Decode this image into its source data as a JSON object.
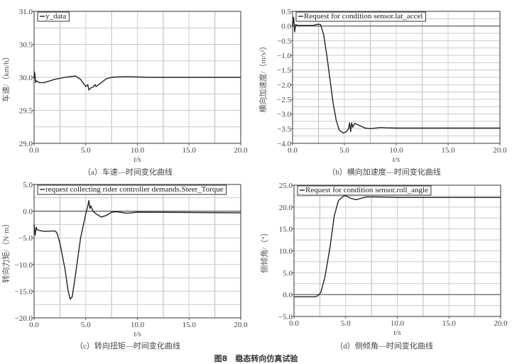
{
  "figure_title": "图8　稳态转向仿真试验",
  "chart_data": [
    {
      "type": "line",
      "caption": "（a）车速—时间变化曲线",
      "xlabel": "t/s",
      "ylabel": "车速/（km/h）",
      "legend": "y_data",
      "legend_position": "top-left",
      "xlim": [
        0,
        20
      ],
      "ylim": [
        29.0,
        31.0
      ],
      "xticks": [
        "0.0",
        "5.0",
        "10.0",
        "15.0",
        "20.0"
      ],
      "yticks": [
        "29.0",
        "29.5",
        "30.0",
        "30.5",
        "31.0"
      ],
      "zero_line": false,
      "x": [
        0,
        0.05,
        0.1,
        0.15,
        0.2,
        0.3,
        0.5,
        1,
        2,
        3,
        4,
        4.5,
        5,
        5.2,
        5.3,
        5.5,
        5.7,
        5.9,
        6,
        6.5,
        7,
        7.5,
        8,
        9,
        10,
        11,
        20
      ],
      "y": [
        29.98,
        30.08,
        30.0,
        29.92,
        29.95,
        29.94,
        29.92,
        29.92,
        29.97,
        30.0,
        30.02,
        29.97,
        29.86,
        29.89,
        29.81,
        29.84,
        29.85,
        29.89,
        29.86,
        29.92,
        29.98,
        30.0,
        30.005,
        30.01,
        30.005,
        30.0,
        30.0
      ]
    },
    {
      "type": "line",
      "caption": "（b）横向加速度—时间变化曲线",
      "xlabel": "t/s",
      "ylabel": "横向加速度/（m/s²）",
      "legend": "Request for condition sensor.lat_accel",
      "legend_position": "top-left",
      "xlim": [
        0,
        20
      ],
      "ylim": [
        -4.0,
        0.5
      ],
      "xticks": [
        "0.0",
        "5.0",
        "10.0",
        "15.0",
        "20.0"
      ],
      "yticks": [
        "-4.0",
        "-3.5",
        "-3.0",
        "-2.5",
        "-2.0",
        "-1.5",
        "-1.0",
        "-0.5",
        "0.0",
        "0.5"
      ],
      "zero_line": true,
      "x": [
        0,
        0.1,
        0.2,
        0.3,
        0.5,
        1,
        2,
        2.4,
        2.7,
        3,
        3.3,
        3.6,
        3.9,
        4.2,
        4.5,
        4.9,
        5.2,
        5.4,
        5.5,
        5.6,
        5.7,
        5.8,
        6,
        6.5,
        7,
        7.5,
        8.5,
        9,
        10,
        20
      ],
      "y": [
        0,
        0.3,
        -0.2,
        0.05,
        0.02,
        0.02,
        0.02,
        0.06,
        0.05,
        -0.3,
        -1.0,
        -1.8,
        -2.6,
        -3.2,
        -3.55,
        -3.65,
        -3.6,
        -3.5,
        -3.3,
        -3.6,
        -3.3,
        -3.45,
        -3.32,
        -3.4,
        -3.48,
        -3.5,
        -3.46,
        -3.47,
        -3.48,
        -3.48
      ]
    },
    {
      "type": "line",
      "caption": "（c）转向扭矩—时间变化曲线",
      "xlabel": "t/s",
      "ylabel": "转向力矩/（N·m）",
      "legend": "request collecting rider controller demands.Steer_Torque",
      "legend_position": "top-left",
      "xlim": [
        0,
        20
      ],
      "ylim": [
        -20.0,
        5.0
      ],
      "xticks": [
        "0.0",
        "5.0",
        "10.0",
        "15.0",
        "20.0"
      ],
      "yticks": [
        "-20.0",
        "-15.0",
        "-10.0",
        "-5.0",
        "0.0",
        "5.0"
      ],
      "zero_line": true,
      "x": [
        0,
        0.1,
        0.2,
        0.3,
        0.5,
        1,
        2,
        2.2,
        2.5,
        3,
        3.3,
        3.5,
        3.7,
        4,
        4.5,
        5,
        5.2,
        5.3,
        5.4,
        5.5,
        5.7,
        6,
        6.5,
        7,
        7.5,
        8,
        9,
        10,
        20
      ],
      "y": [
        -2.5,
        -4.5,
        -3,
        -3.5,
        -3.6,
        -3.8,
        -3.7,
        -4,
        -6,
        -11,
        -15,
        -16.5,
        -16,
        -12,
        -5,
        -0.5,
        1,
        2,
        0.5,
        1,
        0,
        -0.5,
        -1.1,
        -0.8,
        -0.2,
        -0.1,
        -0.4,
        -0.2,
        -0.3
      ]
    },
    {
      "type": "line",
      "caption": "（d）侧倾角—时间变化曲线",
      "xlabel": "t/s",
      "ylabel": "侧倾角/（°）",
      "legend": "Request for condition sensor.roll_angle",
      "legend_position": "top-left",
      "xlim": [
        0,
        20
      ],
      "ylim": [
        -5.0,
        25.0
      ],
      "xticks": [
        "0.0",
        "5.0",
        "10.0",
        "15.0",
        "20.0"
      ],
      "yticks": [
        "-5.0",
        "0.0",
        "5.0",
        "10.0",
        "15.0",
        "20.0",
        "25.0"
      ],
      "zero_line": true,
      "x": [
        0,
        2,
        2.3,
        2.6,
        3,
        3.5,
        3.9,
        4.3,
        4.8,
        5,
        5.5,
        6,
        6.5,
        7,
        8,
        10,
        20
      ],
      "y": [
        -0.5,
        -0.5,
        -0.3,
        0.5,
        4,
        11,
        18,
        21.5,
        22.5,
        22.6,
        22,
        21.7,
        22,
        22.3,
        22.3,
        22.2,
        22.2
      ]
    }
  ]
}
